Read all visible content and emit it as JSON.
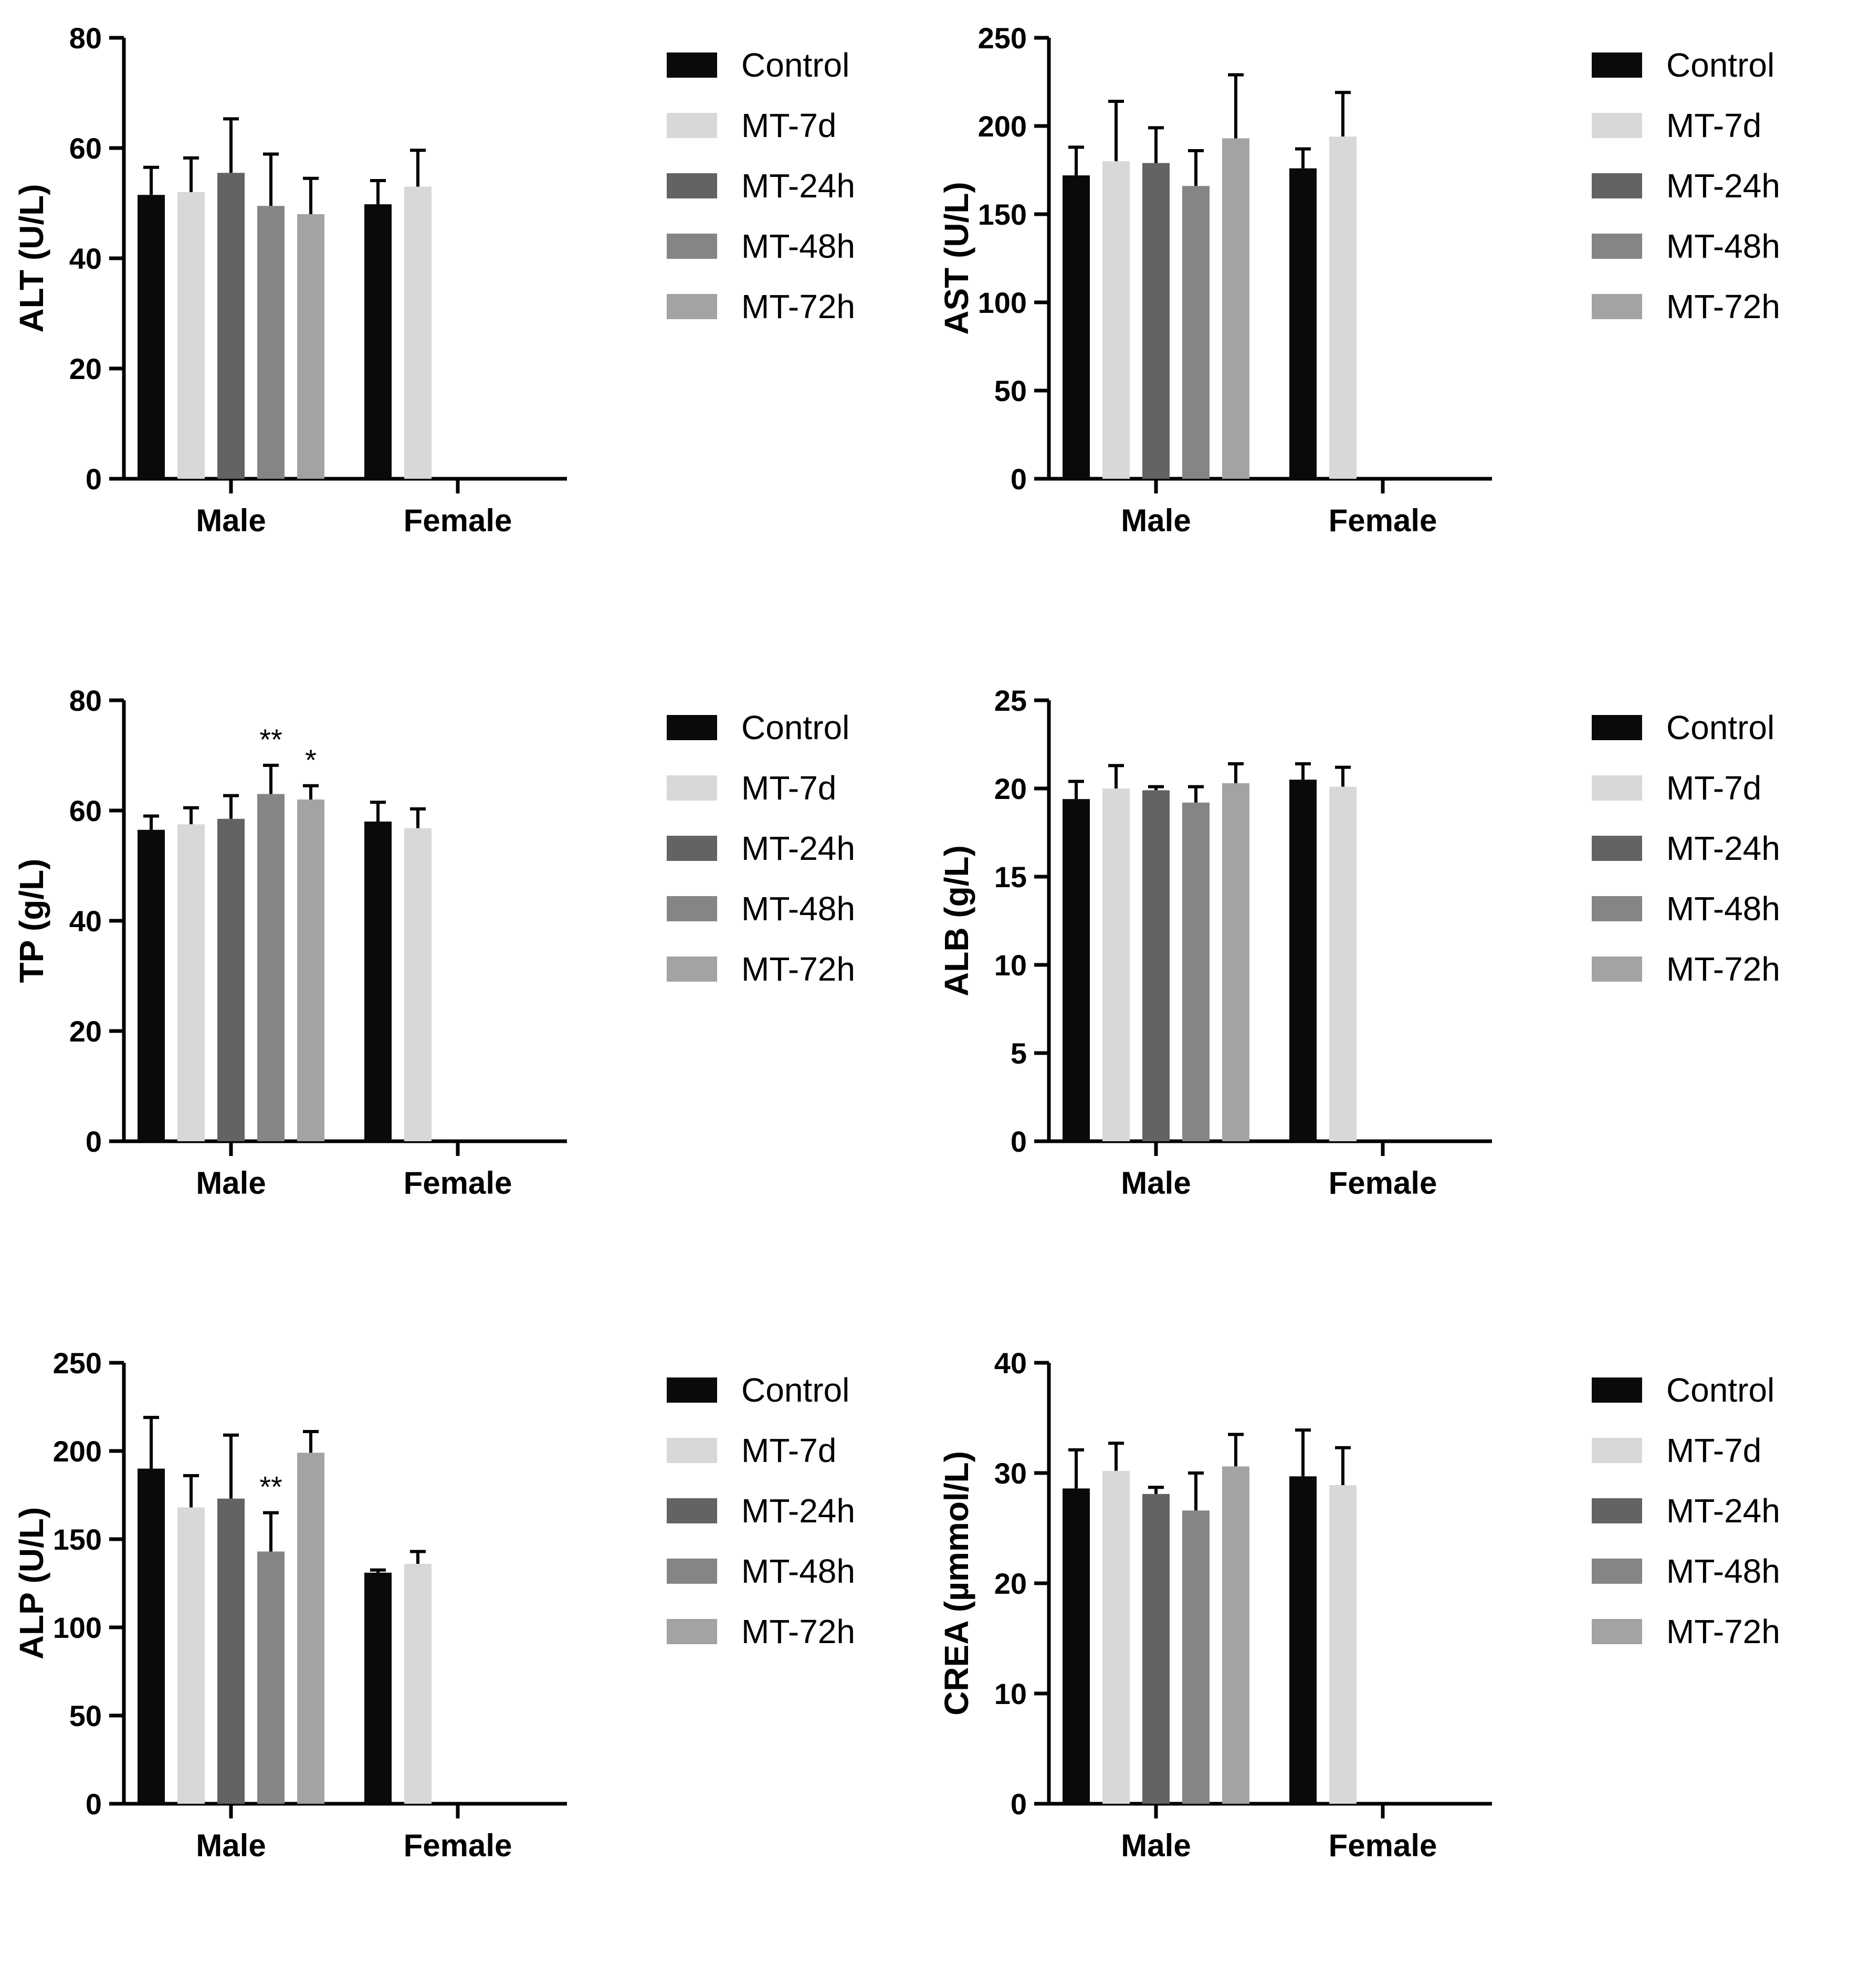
{
  "palette": {
    "Control": "#0a0a0a",
    "MT-7d": "#d8d8d8",
    "MT-24h": "#636363",
    "MT-48h": "#858585",
    "MT-72h": "#a3a3a4"
  },
  "chart_data": [
    {
      "type": "bar",
      "id": "alt",
      "ylabel": "ALT (U/L)",
      "yticks": [
        "0",
        "20",
        "40",
        "60",
        "80"
      ],
      "ylim": [
        0,
        80
      ],
      "categories": [
        "Male",
        "Female"
      ],
      "legend": [
        "Control",
        "MT-7d",
        "MT-24h",
        "MT-48h",
        "MT-72h"
      ],
      "series": [
        {
          "name": "Control",
          "values": [
            51.5,
            49.8
          ],
          "errors": [
            5.0,
            4.3
          ]
        },
        {
          "name": "MT-7d",
          "values": [
            52.0,
            53.0
          ],
          "errors": [
            6.2,
            6.6
          ]
        },
        {
          "name": "MT-24h",
          "values": [
            55.5,
            null
          ],
          "errors": [
            9.8,
            null
          ]
        },
        {
          "name": "MT-48h",
          "values": [
            49.5,
            null
          ],
          "errors": [
            9.4,
            null
          ]
        },
        {
          "name": "MT-72h",
          "values": [
            48.0,
            null
          ],
          "errors": [
            6.5,
            null
          ]
        }
      ],
      "annotations": []
    },
    {
      "type": "bar",
      "id": "ast",
      "ylabel": "AST (U/L)",
      "yticks": [
        "0",
        "50",
        "100",
        "150",
        "200",
        "250"
      ],
      "ylim": [
        0,
        250
      ],
      "categories": [
        "Male",
        "Female"
      ],
      "legend": [
        "Control",
        "MT-7d",
        "MT-24h",
        "MT-48h",
        "MT-72h"
      ],
      "series": [
        {
          "name": "Control",
          "values": [
            172,
            176
          ],
          "errors": [
            16,
            11
          ]
        },
        {
          "name": "MT-7d",
          "values": [
            180,
            194
          ],
          "errors": [
            34,
            25
          ]
        },
        {
          "name": "MT-24h",
          "values": [
            179,
            null
          ],
          "errors": [
            20,
            null
          ]
        },
        {
          "name": "MT-48h",
          "values": [
            166,
            null
          ],
          "errors": [
            20,
            null
          ]
        },
        {
          "name": "MT-72h",
          "values": [
            193,
            null
          ],
          "errors": [
            36,
            null
          ]
        }
      ],
      "annotations": []
    },
    {
      "type": "bar",
      "id": "tp",
      "ylabel": "TP (g/L)",
      "yticks": [
        "0",
        "20",
        "40",
        "60",
        "80"
      ],
      "ylim": [
        0,
        80
      ],
      "categories": [
        "Male",
        "Female"
      ],
      "legend": [
        "Control",
        "MT-7d",
        "MT-24h",
        "MT-48h",
        "MT-72h"
      ],
      "series": [
        {
          "name": "Control",
          "values": [
            56.5,
            58.0
          ],
          "errors": [
            2.5,
            3.5
          ]
        },
        {
          "name": "MT-7d",
          "values": [
            57.5,
            56.8
          ],
          "errors": [
            3.0,
            3.5
          ]
        },
        {
          "name": "MT-24h",
          "values": [
            58.5,
            null
          ],
          "errors": [
            4.2,
            null
          ]
        },
        {
          "name": "MT-48h",
          "values": [
            63.0,
            null
          ],
          "errors": [
            5.2,
            null
          ]
        },
        {
          "name": "MT-72h",
          "values": [
            62.0,
            null
          ],
          "errors": [
            2.5,
            null
          ]
        }
      ],
      "annotations": [
        {
          "category": "Male",
          "series": "MT-48h",
          "text": "**"
        },
        {
          "category": "Male",
          "series": "MT-72h",
          "text": "*"
        }
      ]
    },
    {
      "type": "bar",
      "id": "alb",
      "ylabel": "ALB (g/L)",
      "yticks": [
        "0",
        "5",
        "10",
        "15",
        "20",
        "25"
      ],
      "ylim": [
        0,
        25
      ],
      "categories": [
        "Male",
        "Female"
      ],
      "legend": [
        "Control",
        "MT-7d",
        "MT-24h",
        "MT-48h",
        "MT-72h"
      ],
      "series": [
        {
          "name": "Control",
          "values": [
            19.4,
            20.5
          ],
          "errors": [
            1.0,
            0.9
          ]
        },
        {
          "name": "MT-7d",
          "values": [
            20.0,
            20.1
          ],
          "errors": [
            1.3,
            1.1
          ]
        },
        {
          "name": "MT-24h",
          "values": [
            19.9,
            null
          ],
          "errors": [
            0.2,
            null
          ]
        },
        {
          "name": "MT-48h",
          "values": [
            19.2,
            null
          ],
          "errors": [
            0.9,
            null
          ]
        },
        {
          "name": "MT-72h",
          "values": [
            20.3,
            null
          ],
          "errors": [
            1.1,
            null
          ]
        }
      ],
      "annotations": []
    },
    {
      "type": "bar",
      "id": "alp",
      "ylabel": "ALP (U/L)",
      "yticks": [
        "0",
        "50",
        "100",
        "150",
        "200",
        "250"
      ],
      "ylim": [
        0,
        250
      ],
      "categories": [
        "Male",
        "Female"
      ],
      "legend": [
        "Control",
        "MT-7d",
        "MT-24h",
        "MT-48h",
        "MT-72h"
      ],
      "series": [
        {
          "name": "Control",
          "values": [
            190,
            131
          ],
          "errors": [
            29,
            1.5
          ]
        },
        {
          "name": "MT-7d",
          "values": [
            168,
            136
          ],
          "errors": [
            18,
            7
          ]
        },
        {
          "name": "MT-24h",
          "values": [
            173,
            null
          ],
          "errors": [
            36,
            null
          ]
        },
        {
          "name": "MT-48h",
          "values": [
            143,
            null
          ],
          "errors": [
            22,
            null
          ]
        },
        {
          "name": "MT-72h",
          "values": [
            199,
            null
          ],
          "errors": [
            12,
            null
          ]
        }
      ],
      "annotations": [
        {
          "category": "Male",
          "series": "MT-48h",
          "text": "**"
        }
      ]
    },
    {
      "type": "bar",
      "id": "crea",
      "ylabel": "CREA (µmmol/L)",
      "yticks": [
        "0",
        "10",
        "20",
        "30",
        "40"
      ],
      "ylim": [
        0,
        40
      ],
      "categories": [
        "Male",
        "Female"
      ],
      "legend": [
        "Control",
        "MT-7d",
        "MT-24h",
        "MT-48h",
        "MT-72h"
      ],
      "series": [
        {
          "name": "Control",
          "values": [
            28.6,
            29.7
          ],
          "errors": [
            3.5,
            4.2
          ]
        },
        {
          "name": "MT-7d",
          "values": [
            30.2,
            28.9
          ],
          "errors": [
            2.5,
            3.4
          ]
        },
        {
          "name": "MT-24h",
          "values": [
            28.1,
            null
          ],
          "errors": [
            0.6,
            null
          ]
        },
        {
          "name": "MT-48h",
          "values": [
            26.6,
            null
          ],
          "errors": [
            3.4,
            null
          ]
        },
        {
          "name": "MT-72h",
          "values": [
            30.6,
            null
          ],
          "errors": [
            2.9,
            null
          ]
        }
      ],
      "annotations": []
    }
  ]
}
